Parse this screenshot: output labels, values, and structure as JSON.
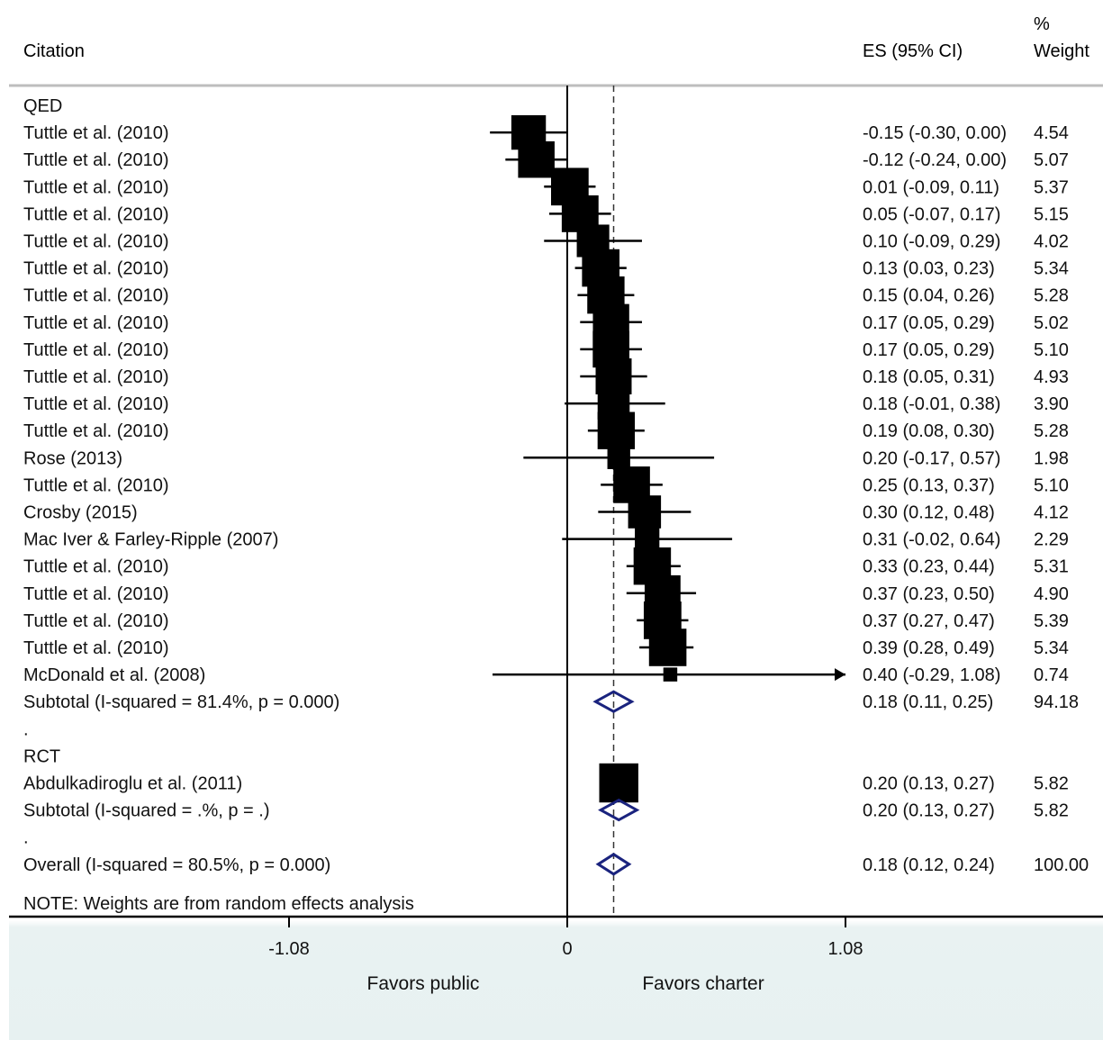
{
  "header": {
    "citation": "Citation",
    "es": "ES (95% CI)",
    "weight_pct": "%",
    "weight": "Weight"
  },
  "chart_data": {
    "type": "forest",
    "x_ticks": [
      {
        "value": -1.08,
        "label": "-1.08"
      },
      {
        "value": 0,
        "label": "0"
      },
      {
        "value": 1.08,
        "label": "1.08"
      }
    ],
    "xlim": [
      -1.08,
      1.08
    ],
    "overall_line": 0.18,
    "favors_left": "Favors public",
    "favors_right": "Favors charter",
    "note": "NOTE: Weights are from random effects analysis",
    "rows": [
      {
        "kind": "group",
        "label": "QED"
      },
      {
        "kind": "study",
        "label": "Tuttle et al. (2010)",
        "es": -0.15,
        "lo": -0.3,
        "hi": 0.0,
        "weight": 4.54,
        "es_text": "-0.15 (-0.30, 0.00)",
        "weight_text": "4.54"
      },
      {
        "kind": "study",
        "label": "Tuttle et al. (2010)",
        "es": -0.12,
        "lo": -0.24,
        "hi": 0.0,
        "weight": 5.07,
        "es_text": "-0.12 (-0.24, 0.00)",
        "weight_text": "5.07"
      },
      {
        "kind": "study",
        "label": "Tuttle et al. (2010)",
        "es": 0.01,
        "lo": -0.09,
        "hi": 0.11,
        "weight": 5.37,
        "es_text": "0.01 (-0.09, 0.11)",
        "weight_text": "5.37"
      },
      {
        "kind": "study",
        "label": "Tuttle et al. (2010)",
        "es": 0.05,
        "lo": -0.07,
        "hi": 0.17,
        "weight": 5.15,
        "es_text": "0.05 (-0.07, 0.17)",
        "weight_text": "5.15"
      },
      {
        "kind": "study",
        "label": "Tuttle et al. (2010)",
        "es": 0.1,
        "lo": -0.09,
        "hi": 0.29,
        "weight": 4.02,
        "es_text": "0.10 (-0.09, 0.29)",
        "weight_text": "4.02"
      },
      {
        "kind": "study",
        "label": "Tuttle et al. (2010)",
        "es": 0.13,
        "lo": 0.03,
        "hi": 0.23,
        "weight": 5.34,
        "es_text": "0.13 (0.03, 0.23)",
        "weight_text": "5.34"
      },
      {
        "kind": "study",
        "label": "Tuttle et al. (2010)",
        "es": 0.15,
        "lo": 0.04,
        "hi": 0.26,
        "weight": 5.28,
        "es_text": "0.15 (0.04, 0.26)",
        "weight_text": "5.28"
      },
      {
        "kind": "study",
        "label": "Tuttle et al. (2010)",
        "es": 0.17,
        "lo": 0.05,
        "hi": 0.29,
        "weight": 5.02,
        "es_text": "0.17 (0.05, 0.29)",
        "weight_text": "5.02"
      },
      {
        "kind": "study",
        "label": "Tuttle et al. (2010)",
        "es": 0.17,
        "lo": 0.05,
        "hi": 0.29,
        "weight": 5.1,
        "es_text": "0.17 (0.05, 0.29)",
        "weight_text": "5.10"
      },
      {
        "kind": "study",
        "label": "Tuttle et al. (2010)",
        "es": 0.18,
        "lo": 0.05,
        "hi": 0.31,
        "weight": 4.93,
        "es_text": "0.18 (0.05, 0.31)",
        "weight_text": "4.93"
      },
      {
        "kind": "study",
        "label": "Tuttle et al. (2010)",
        "es": 0.18,
        "lo": -0.01,
        "hi": 0.38,
        "weight": 3.9,
        "es_text": "0.18 (-0.01, 0.38)",
        "weight_text": "3.90"
      },
      {
        "kind": "study",
        "label": "Tuttle et al. (2010)",
        "es": 0.19,
        "lo": 0.08,
        "hi": 0.3,
        "weight": 5.28,
        "es_text": "0.19 (0.08, 0.30)",
        "weight_text": "5.28"
      },
      {
        "kind": "study",
        "label": "Rose (2013)",
        "es": 0.2,
        "lo": -0.17,
        "hi": 0.57,
        "weight": 1.98,
        "es_text": "0.20 (-0.17, 0.57)",
        "weight_text": "1.98"
      },
      {
        "kind": "study",
        "label": "Tuttle et al. (2010)",
        "es": 0.25,
        "lo": 0.13,
        "hi": 0.37,
        "weight": 5.1,
        "es_text": "0.25 (0.13, 0.37)",
        "weight_text": "5.10"
      },
      {
        "kind": "study",
        "label": "Crosby (2015)",
        "es": 0.3,
        "lo": 0.12,
        "hi": 0.48,
        "weight": 4.12,
        "es_text": "0.30 (0.12, 0.48)",
        "weight_text": "4.12"
      },
      {
        "kind": "study",
        "label": "Mac Iver & Farley-Ripple (2007)",
        "es": 0.31,
        "lo": -0.02,
        "hi": 0.64,
        "weight": 2.29,
        "es_text": "0.31 (-0.02, 0.64)",
        "weight_text": "2.29"
      },
      {
        "kind": "study",
        "label": "Tuttle et al. (2010)",
        "es": 0.33,
        "lo": 0.23,
        "hi": 0.44,
        "weight": 5.31,
        "es_text": "0.33 (0.23, 0.44)",
        "weight_text": "5.31"
      },
      {
        "kind": "study",
        "label": "Tuttle et al. (2010)",
        "es": 0.37,
        "lo": 0.23,
        "hi": 0.5,
        "weight": 4.9,
        "es_text": "0.37 (0.23, 0.50)",
        "weight_text": "4.90"
      },
      {
        "kind": "study",
        "label": "Tuttle et al. (2010)",
        "es": 0.37,
        "lo": 0.27,
        "hi": 0.47,
        "weight": 5.39,
        "es_text": "0.37 (0.27, 0.47)",
        "weight_text": "5.39"
      },
      {
        "kind": "study",
        "label": "Tuttle et al. (2010)",
        "es": 0.39,
        "lo": 0.28,
        "hi": 0.49,
        "weight": 5.34,
        "es_text": "0.39 (0.28, 0.49)",
        "weight_text": "5.34"
      },
      {
        "kind": "study",
        "label": "McDonald et al. (2008)",
        "es": 0.4,
        "lo": -0.29,
        "hi": 1.08,
        "weight": 0.74,
        "es_text": "0.40 (-0.29, 1.08)",
        "weight_text": "0.74",
        "arrow_right": true
      },
      {
        "kind": "subtotal",
        "label": "Subtotal  (I-squared = 81.4%, p = 0.000)",
        "es": 0.18,
        "lo": 0.11,
        "hi": 0.25,
        "weight": 94.18,
        "es_text": "0.18 (0.11, 0.25)",
        "weight_text": "94.18"
      },
      {
        "kind": "dot",
        "label": "."
      },
      {
        "kind": "group",
        "label": "RCT"
      },
      {
        "kind": "study",
        "label": "Abdulkadiroglu et al. (2011)",
        "es": 0.2,
        "lo": 0.13,
        "hi": 0.27,
        "weight": 5.82,
        "es_text": "0.20 (0.13, 0.27)",
        "weight_text": "5.82"
      },
      {
        "kind": "subtotal",
        "label": "Subtotal  (I-squared = .%, p = .)",
        "es": 0.2,
        "lo": 0.13,
        "hi": 0.27,
        "weight": 5.82,
        "es_text": "0.20 (0.13, 0.27)",
        "weight_text": "5.82"
      },
      {
        "kind": "dot",
        "label": "."
      },
      {
        "kind": "overall",
        "label": "Overall  (I-squared = 80.5%, p = 0.000)",
        "es": 0.18,
        "lo": 0.12,
        "hi": 0.24,
        "weight": 100.0,
        "es_text": "0.18 (0.12, 0.24)",
        "weight_text": "100.00"
      }
    ],
    "colors": {
      "marker": "#000000",
      "diamond": "#1a237e",
      "axis_band": "#e7f1f1",
      "header_rule": "#bdbdbd"
    }
  }
}
